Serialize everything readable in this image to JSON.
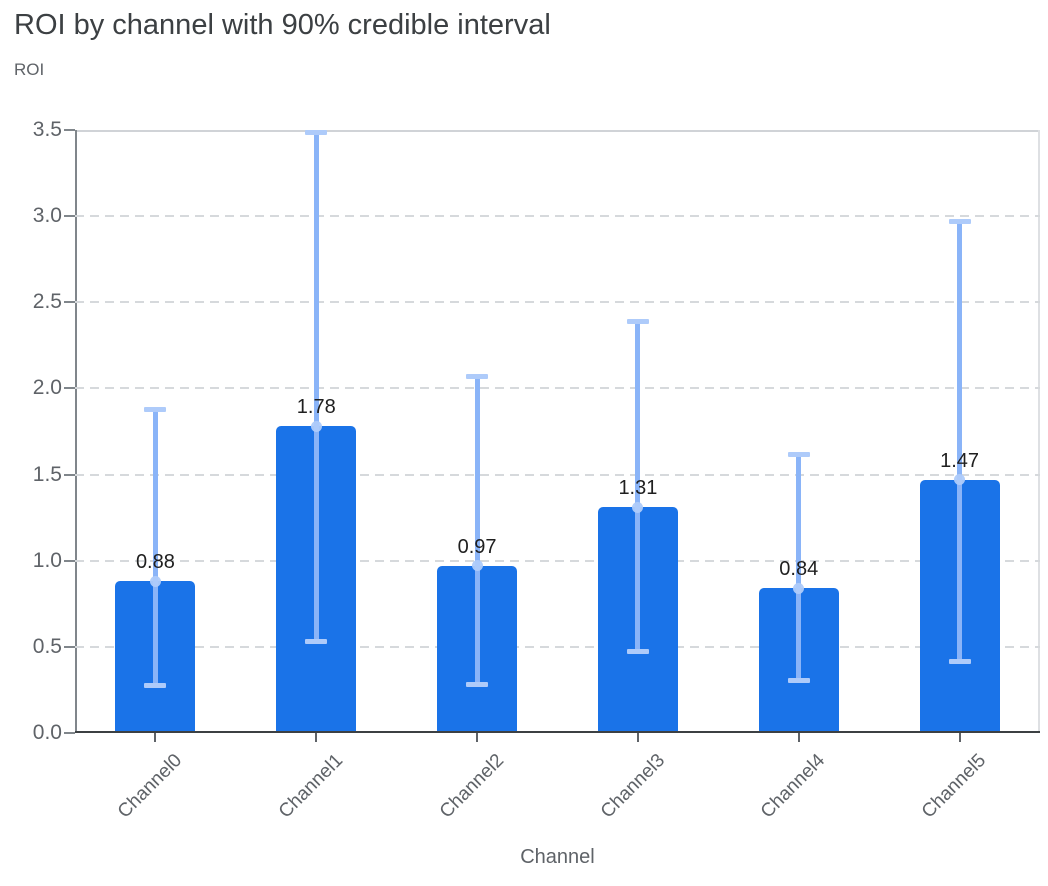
{
  "chart_data": {
    "type": "bar",
    "title": "ROI by channel with 90% credible interval",
    "xlabel": "Channel",
    "ylabel": "ROI",
    "ylim": [
      0,
      3.5
    ],
    "ytick_labels": [
      "0.0",
      "0.5",
      "1.0",
      "1.5",
      "2.0",
      "2.5",
      "3.0",
      "3.5"
    ],
    "categories": [
      "Channel0",
      "Channel1",
      "Channel2",
      "Channel3",
      "Channel4",
      "Channel5"
    ],
    "series": [
      {
        "name": "ROI",
        "values": [
          0.88,
          1.78,
          0.97,
          1.31,
          0.84,
          1.47
        ]
      }
    ],
    "value_labels": [
      "0.88",
      "1.78",
      "0.97",
      "1.31",
      "0.84",
      "1.47"
    ],
    "credible_interval": {
      "level": "90%",
      "low": [
        0.27,
        0.53,
        0.28,
        0.47,
        0.3,
        0.41
      ],
      "high": [
        1.88,
        3.49,
        2.07,
        2.39,
        1.62,
        2.97
      ]
    },
    "grid": {
      "horizontal": true,
      "style": "dashed"
    },
    "legend": "none",
    "colors": {
      "bar": "#1a73e8",
      "error_line": "#8ab4f8",
      "error_cap": "#aecbfa",
      "marker": "#aecbfa",
      "title_text": "#3c4043",
      "axis_text": "#5f6368",
      "value_text": "#1f1f1f",
      "grid_line": "#d6d9dc",
      "axis_line_x": "#3c4043",
      "axis_line_y": "#80868b"
    }
  }
}
